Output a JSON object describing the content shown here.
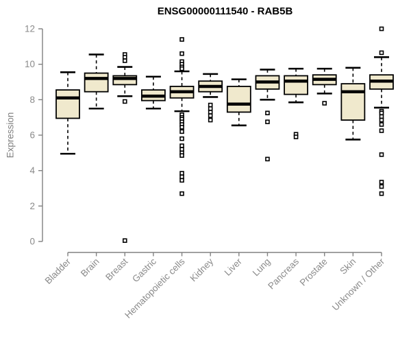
{
  "chart_data": {
    "type": "boxplot",
    "title": "ENSG00000111540 - RAB5B",
    "ylabel": "Expression",
    "ylim": [
      0,
      12
    ],
    "yticks": [
      0,
      2,
      4,
      6,
      8,
      10,
      12
    ],
    "grid": false,
    "legend": "none",
    "categories": [
      "Bladder",
      "Brain",
      "Breast",
      "Gastric",
      "Hematopoietic cells",
      "Kidney",
      "Liver",
      "Lung",
      "Pancreas",
      "Prostate",
      "Skin",
      "Unknown / Other"
    ],
    "boxes": [
      {
        "category": "Bladder",
        "whisker_low": 4.95,
        "q1": 6.95,
        "median": 8.1,
        "q3": 8.55,
        "whisker_high": 9.55,
        "outliers": []
      },
      {
        "category": "Brain",
        "whisker_low": 7.5,
        "q1": 8.45,
        "median": 9.2,
        "q3": 9.5,
        "whisker_high": 10.55,
        "outliers": []
      },
      {
        "category": "Breast",
        "whisker_low": 8.2,
        "q1": 8.85,
        "median": 9.2,
        "q3": 9.35,
        "whisker_high": 9.85,
        "outliers": [
          10.55,
          10.4,
          10.2,
          7.9,
          0.05
        ]
      },
      {
        "category": "Gastric",
        "whisker_low": 7.5,
        "q1": 7.95,
        "median": 8.2,
        "q3": 8.55,
        "whisker_high": 9.3,
        "outliers": []
      },
      {
        "category": "Hematopoietic cells",
        "whisker_low": 7.35,
        "q1": 8.1,
        "median": 8.45,
        "q3": 8.75,
        "whisker_high": 9.6,
        "outliers": [
          11.4,
          10.6,
          10.15,
          10.0,
          9.85,
          9.75,
          7.15,
          7.0,
          6.9,
          6.75,
          6.6,
          6.45,
          6.2,
          5.8,
          5.4,
          5.2,
          5.0,
          4.85,
          3.85,
          3.65,
          3.45,
          2.7
        ]
      },
      {
        "category": "Kidney",
        "whisker_low": 8.15,
        "q1": 8.45,
        "median": 8.75,
        "q3": 9.05,
        "whisker_high": 9.45,
        "outliers": [
          7.7,
          7.5,
          7.3,
          7.1,
          6.85
        ]
      },
      {
        "category": "Liver",
        "whisker_low": 6.55,
        "q1": 7.3,
        "median": 7.75,
        "q3": 8.75,
        "whisker_high": 9.15,
        "outliers": []
      },
      {
        "category": "Lung",
        "whisker_low": 8.0,
        "q1": 8.6,
        "median": 9.0,
        "q3": 9.35,
        "whisker_high": 9.7,
        "outliers": [
          7.25,
          6.75,
          4.65
        ]
      },
      {
        "category": "Pancreas",
        "whisker_low": 7.85,
        "q1": 8.3,
        "median": 9.05,
        "q3": 9.35,
        "whisker_high": 9.75,
        "outliers": [
          6.05,
          5.9
        ]
      },
      {
        "category": "Prostate",
        "whisker_low": 8.35,
        "q1": 8.85,
        "median": 9.15,
        "q3": 9.4,
        "whisker_high": 9.75,
        "outliers": [
          7.8
        ]
      },
      {
        "category": "Skin",
        "whisker_low": 5.75,
        "q1": 6.85,
        "median": 8.45,
        "q3": 8.9,
        "whisker_high": 9.8,
        "outliers": []
      },
      {
        "category": "Unknown / Other",
        "whisker_low": 7.55,
        "q1": 8.6,
        "median": 9.05,
        "q3": 9.4,
        "whisker_high": 10.4,
        "outliers": [
          12.0,
          10.65,
          7.35,
          7.25,
          7.05,
          6.85,
          6.6,
          6.25,
          4.9,
          3.35,
          3.1,
          2.7
        ]
      }
    ],
    "colors": {
      "box_fill": "#F0E9CD",
      "box_border": "#000000",
      "median": "#000000",
      "whisker": "#000000",
      "outlier_stroke": "#000000",
      "outlier_fill": "#ffffff",
      "axis": "#818181",
      "tick_label": "#8A8A8A",
      "title": "#000000",
      "background": "#ffffff"
    }
  }
}
